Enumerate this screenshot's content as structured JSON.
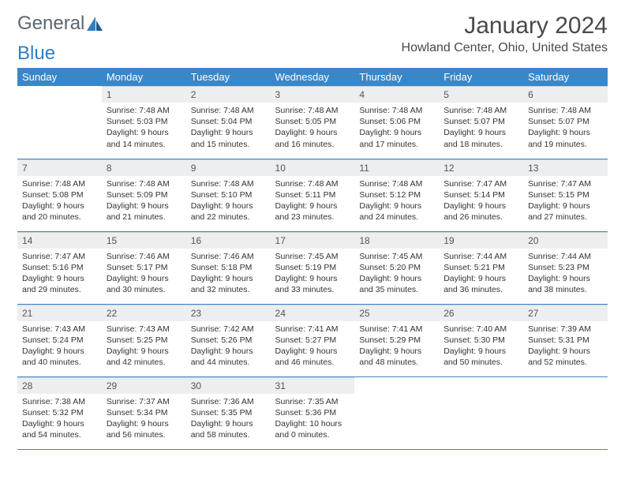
{
  "logo": {
    "text1": "General",
    "text2": "Blue"
  },
  "title": "January 2024",
  "location": "Howland Center, Ohio, United States",
  "colors": {
    "header_bg": "#3a87c8",
    "header_fg": "#ffffff",
    "daynum_bg": "#eceef0",
    "row_divider": "#3a87c8",
    "logo_gray": "#5a6570",
    "logo_blue": "#2f7ec1",
    "page_bg": "#ffffff",
    "text": "#333333"
  },
  "daysOfWeek": [
    "Sunday",
    "Monday",
    "Tuesday",
    "Wednesday",
    "Thursday",
    "Friday",
    "Saturday"
  ],
  "weeks": [
    [
      {
        "n": "",
        "l1": "",
        "l2": "",
        "l3": "",
        "l4": "",
        "empty": true
      },
      {
        "n": "1",
        "l1": "Sunrise: 7:48 AM",
        "l2": "Sunset: 5:03 PM",
        "l3": "Daylight: 9 hours",
        "l4": "and 14 minutes."
      },
      {
        "n": "2",
        "l1": "Sunrise: 7:48 AM",
        "l2": "Sunset: 5:04 PM",
        "l3": "Daylight: 9 hours",
        "l4": "and 15 minutes."
      },
      {
        "n": "3",
        "l1": "Sunrise: 7:48 AM",
        "l2": "Sunset: 5:05 PM",
        "l3": "Daylight: 9 hours",
        "l4": "and 16 minutes."
      },
      {
        "n": "4",
        "l1": "Sunrise: 7:48 AM",
        "l2": "Sunset: 5:06 PM",
        "l3": "Daylight: 9 hours",
        "l4": "and 17 minutes."
      },
      {
        "n": "5",
        "l1": "Sunrise: 7:48 AM",
        "l2": "Sunset: 5:07 PM",
        "l3": "Daylight: 9 hours",
        "l4": "and 18 minutes."
      },
      {
        "n": "6",
        "l1": "Sunrise: 7:48 AM",
        "l2": "Sunset: 5:07 PM",
        "l3": "Daylight: 9 hours",
        "l4": "and 19 minutes."
      }
    ],
    [
      {
        "n": "7",
        "l1": "Sunrise: 7:48 AM",
        "l2": "Sunset: 5:08 PM",
        "l3": "Daylight: 9 hours",
        "l4": "and 20 minutes."
      },
      {
        "n": "8",
        "l1": "Sunrise: 7:48 AM",
        "l2": "Sunset: 5:09 PM",
        "l3": "Daylight: 9 hours",
        "l4": "and 21 minutes."
      },
      {
        "n": "9",
        "l1": "Sunrise: 7:48 AM",
        "l2": "Sunset: 5:10 PM",
        "l3": "Daylight: 9 hours",
        "l4": "and 22 minutes."
      },
      {
        "n": "10",
        "l1": "Sunrise: 7:48 AM",
        "l2": "Sunset: 5:11 PM",
        "l3": "Daylight: 9 hours",
        "l4": "and 23 minutes."
      },
      {
        "n": "11",
        "l1": "Sunrise: 7:48 AM",
        "l2": "Sunset: 5:12 PM",
        "l3": "Daylight: 9 hours",
        "l4": "and 24 minutes."
      },
      {
        "n": "12",
        "l1": "Sunrise: 7:47 AM",
        "l2": "Sunset: 5:14 PM",
        "l3": "Daylight: 9 hours",
        "l4": "and 26 minutes."
      },
      {
        "n": "13",
        "l1": "Sunrise: 7:47 AM",
        "l2": "Sunset: 5:15 PM",
        "l3": "Daylight: 9 hours",
        "l4": "and 27 minutes."
      }
    ],
    [
      {
        "n": "14",
        "l1": "Sunrise: 7:47 AM",
        "l2": "Sunset: 5:16 PM",
        "l3": "Daylight: 9 hours",
        "l4": "and 29 minutes."
      },
      {
        "n": "15",
        "l1": "Sunrise: 7:46 AM",
        "l2": "Sunset: 5:17 PM",
        "l3": "Daylight: 9 hours",
        "l4": "and 30 minutes."
      },
      {
        "n": "16",
        "l1": "Sunrise: 7:46 AM",
        "l2": "Sunset: 5:18 PM",
        "l3": "Daylight: 9 hours",
        "l4": "and 32 minutes."
      },
      {
        "n": "17",
        "l1": "Sunrise: 7:45 AM",
        "l2": "Sunset: 5:19 PM",
        "l3": "Daylight: 9 hours",
        "l4": "and 33 minutes."
      },
      {
        "n": "18",
        "l1": "Sunrise: 7:45 AM",
        "l2": "Sunset: 5:20 PM",
        "l3": "Daylight: 9 hours",
        "l4": "and 35 minutes."
      },
      {
        "n": "19",
        "l1": "Sunrise: 7:44 AM",
        "l2": "Sunset: 5:21 PM",
        "l3": "Daylight: 9 hours",
        "l4": "and 36 minutes."
      },
      {
        "n": "20",
        "l1": "Sunrise: 7:44 AM",
        "l2": "Sunset: 5:23 PM",
        "l3": "Daylight: 9 hours",
        "l4": "and 38 minutes."
      }
    ],
    [
      {
        "n": "21",
        "l1": "Sunrise: 7:43 AM",
        "l2": "Sunset: 5:24 PM",
        "l3": "Daylight: 9 hours",
        "l4": "and 40 minutes."
      },
      {
        "n": "22",
        "l1": "Sunrise: 7:43 AM",
        "l2": "Sunset: 5:25 PM",
        "l3": "Daylight: 9 hours",
        "l4": "and 42 minutes."
      },
      {
        "n": "23",
        "l1": "Sunrise: 7:42 AM",
        "l2": "Sunset: 5:26 PM",
        "l3": "Daylight: 9 hours",
        "l4": "and 44 minutes."
      },
      {
        "n": "24",
        "l1": "Sunrise: 7:41 AM",
        "l2": "Sunset: 5:27 PM",
        "l3": "Daylight: 9 hours",
        "l4": "and 46 minutes."
      },
      {
        "n": "25",
        "l1": "Sunrise: 7:41 AM",
        "l2": "Sunset: 5:29 PM",
        "l3": "Daylight: 9 hours",
        "l4": "and 48 minutes."
      },
      {
        "n": "26",
        "l1": "Sunrise: 7:40 AM",
        "l2": "Sunset: 5:30 PM",
        "l3": "Daylight: 9 hours",
        "l4": "and 50 minutes."
      },
      {
        "n": "27",
        "l1": "Sunrise: 7:39 AM",
        "l2": "Sunset: 5:31 PM",
        "l3": "Daylight: 9 hours",
        "l4": "and 52 minutes."
      }
    ],
    [
      {
        "n": "28",
        "l1": "Sunrise: 7:38 AM",
        "l2": "Sunset: 5:32 PM",
        "l3": "Daylight: 9 hours",
        "l4": "and 54 minutes."
      },
      {
        "n": "29",
        "l1": "Sunrise: 7:37 AM",
        "l2": "Sunset: 5:34 PM",
        "l3": "Daylight: 9 hours",
        "l4": "and 56 minutes."
      },
      {
        "n": "30",
        "l1": "Sunrise: 7:36 AM",
        "l2": "Sunset: 5:35 PM",
        "l3": "Daylight: 9 hours",
        "l4": "and 58 minutes."
      },
      {
        "n": "31",
        "l1": "Sunrise: 7:35 AM",
        "l2": "Sunset: 5:36 PM",
        "l3": "Daylight: 10 hours",
        "l4": "and 0 minutes."
      },
      {
        "n": "",
        "l1": "",
        "l2": "",
        "l3": "",
        "l4": "",
        "empty": true
      },
      {
        "n": "",
        "l1": "",
        "l2": "",
        "l3": "",
        "l4": "",
        "empty": true
      },
      {
        "n": "",
        "l1": "",
        "l2": "",
        "l3": "",
        "l4": "",
        "empty": true
      }
    ]
  ]
}
